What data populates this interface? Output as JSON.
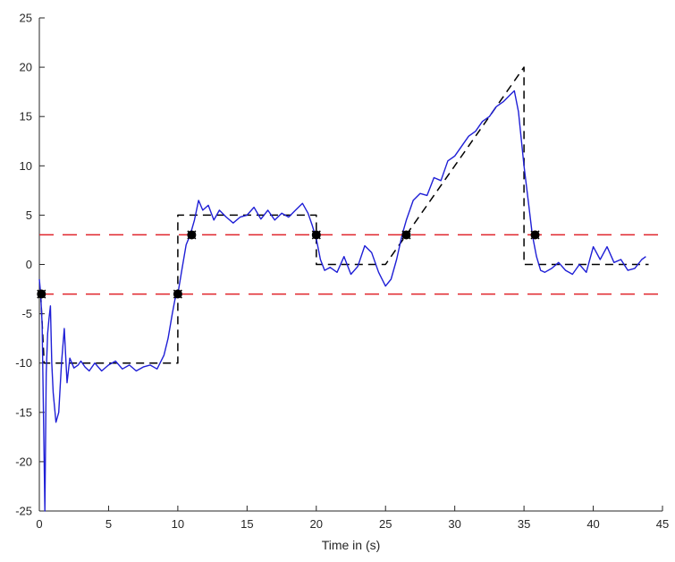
{
  "chart_data": {
    "type": "line",
    "title": "",
    "xlabel": "Time in (s)",
    "ylabel": "",
    "xlim": [
      0,
      45
    ],
    "ylim": [
      -25,
      25
    ],
    "x_ticks": [
      0,
      5,
      10,
      15,
      20,
      25,
      30,
      35,
      40,
      45
    ],
    "y_ticks": [
      -25,
      -20,
      -15,
      -10,
      -5,
      0,
      5,
      10,
      15,
      20,
      25
    ],
    "grid": false,
    "legend": "none",
    "series": [
      {
        "style": "dashed",
        "color": "#000000",
        "x": [
          0.1,
          0.35,
          10.0,
          10.0,
          20.0,
          20.0,
          25.0,
          35.0,
          35.0,
          44.0
        ],
        "y": [
          -3,
          -10,
          -10,
          5,
          5,
          0,
          0,
          20,
          0,
          0
        ]
      },
      {
        "style": "solid",
        "color": "#1f1fd6",
        "x": [
          0.0,
          0.1,
          0.2,
          0.3,
          0.4,
          0.5,
          0.6,
          0.7,
          0.8,
          0.9,
          1.0,
          1.2,
          1.4,
          1.6,
          1.8,
          2.0,
          2.2,
          2.5,
          2.8,
          3.0,
          3.3,
          3.6,
          4.0,
          4.5,
          5.0,
          5.5,
          6.0,
          6.5,
          7.0,
          7.5,
          8.0,
          8.5,
          9.0,
          9.3,
          9.6,
          9.8,
          10.0,
          10.3,
          10.6,
          10.9,
          11.2,
          11.5,
          11.8,
          12.2,
          12.6,
          13.0,
          13.5,
          14.0,
          14.5,
          15.0,
          15.5,
          16.0,
          16.5,
          17.0,
          17.5,
          18.0,
          18.5,
          19.0,
          19.4,
          19.7,
          20.0,
          20.3,
          20.6,
          21.0,
          21.5,
          22.0,
          22.5,
          23.0,
          23.5,
          24.0,
          24.5,
          25.0,
          25.4,
          25.8,
          26.2,
          26.5,
          27.0,
          27.5,
          28.0,
          28.5,
          29.0,
          29.5,
          30.0,
          30.5,
          31.0,
          31.5,
          32.0,
          32.5,
          33.0,
          33.5,
          34.0,
          34.3,
          34.6,
          35.0,
          35.3,
          35.6,
          35.9,
          36.2,
          36.5,
          37.0,
          37.5,
          38.0,
          38.5,
          39.0,
          39.5,
          40.0,
          40.5,
          41.0,
          41.5,
          42.0,
          42.5,
          43.0,
          43.5,
          43.8
        ],
        "y": [
          -1.5,
          -3,
          -6,
          -15,
          -25,
          -11,
          -7,
          -5.5,
          -4.2,
          -10,
          -13,
          -16,
          -15,
          -10,
          -6.5,
          -12,
          -9.5,
          -10.5,
          -10.2,
          -9.8,
          -10.4,
          -10.8,
          -10,
          -10.8,
          -10.2,
          -9.8,
          -10.6,
          -10.2,
          -10.8,
          -10.4,
          -10.2,
          -10.6,
          -9.2,
          -7.5,
          -5,
          -3.5,
          -3,
          -0.5,
          2,
          3,
          4.5,
          6.5,
          5.5,
          6,
          4.5,
          5.5,
          4.8,
          4.2,
          4.8,
          5,
          5.8,
          4.6,
          5.5,
          4.5,
          5.2,
          4.8,
          5.5,
          6.2,
          5.2,
          4,
          2.6,
          0.5,
          -0.6,
          -0.3,
          -0.8,
          0.8,
          -1,
          -0.2,
          1.9,
          1.2,
          -0.8,
          -2.2,
          -1.5,
          0.5,
          3,
          4.5,
          6.5,
          7.2,
          7,
          8.8,
          8.5,
          10.5,
          11,
          12,
          13,
          13.5,
          14.5,
          15,
          16,
          16.5,
          17.2,
          17.6,
          15.5,
          10,
          6.5,
          3,
          0.8,
          -0.6,
          -0.8,
          -0.4,
          0.2,
          -0.6,
          -1,
          0,
          -0.8,
          1.8,
          0.5,
          1.8,
          0.2,
          0.5,
          -0.6,
          -0.4,
          0.5,
          0.8
        ]
      },
      {
        "style": "dashed",
        "color": "#e0242b",
        "x": [
          0,
          45
        ],
        "y": [
          3,
          3
        ]
      },
      {
        "style": "dashed",
        "color": "#e0242b",
        "x": [
          0,
          45
        ],
        "y": [
          -3,
          -3
        ]
      }
    ],
    "markers": {
      "type": "scatter",
      "color": "#000000",
      "x": [
        0.15,
        10.0,
        11.0,
        20.0,
        26.5,
        35.8
      ],
      "y": [
        -3,
        -3,
        3,
        3,
        3,
        3
      ]
    }
  }
}
